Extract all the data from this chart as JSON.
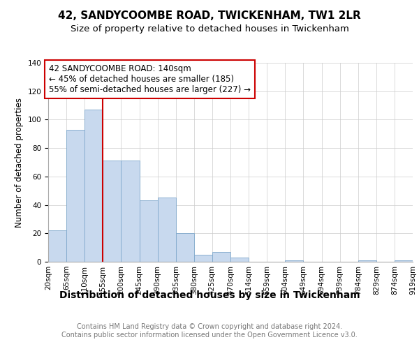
{
  "title1": "42, SANDYCOOMBE ROAD, TWICKENHAM, TW1 2LR",
  "title2": "Size of property relative to detached houses in Twickenham",
  "xlabel": "Distribution of detached houses by size in Twickenham",
  "ylabel": "Number of detached properties",
  "bar_values": [
    22,
    93,
    107,
    71,
    71,
    43,
    45,
    20,
    5,
    7,
    3,
    0,
    0,
    1,
    0,
    0,
    0,
    1,
    0,
    1
  ],
  "bar_labels": [
    "20sqm",
    "65sqm",
    "110sqm",
    "155sqm",
    "200sqm",
    "245sqm",
    "290sqm",
    "335sqm",
    "380sqm",
    "425sqm",
    "470sqm",
    "514sqm",
    "559sqm",
    "604sqm",
    "649sqm",
    "694sqm",
    "739sqm",
    "784sqm",
    "829sqm",
    "874sqm",
    "919sqm"
  ],
  "bar_color": "#c8d9ee",
  "bar_edge_color": "#7fa8cc",
  "property_line_x": 3,
  "property_line_color": "#cc0000",
  "annotation_text": "42 SANDYCOOMBE ROAD: 140sqm\n← 45% of detached houses are smaller (185)\n55% of semi-detached houses are larger (227) →",
  "annotation_box_color": "white",
  "annotation_box_edge_color": "#cc0000",
  "ylim": [
    0,
    140
  ],
  "yticks": [
    0,
    20,
    40,
    60,
    80,
    100,
    120,
    140
  ],
  "background_color": "#ffffff",
  "plot_bg_color": "#ffffff",
  "footer_text": "Contains HM Land Registry data © Crown copyright and database right 2024.\nContains public sector information licensed under the Open Government Licence v3.0.",
  "title1_fontsize": 11,
  "title2_fontsize": 9.5,
  "xlabel_fontsize": 10,
  "ylabel_fontsize": 8.5,
  "annotation_fontsize": 8.5,
  "footer_fontsize": 7,
  "tick_fontsize": 7.5
}
